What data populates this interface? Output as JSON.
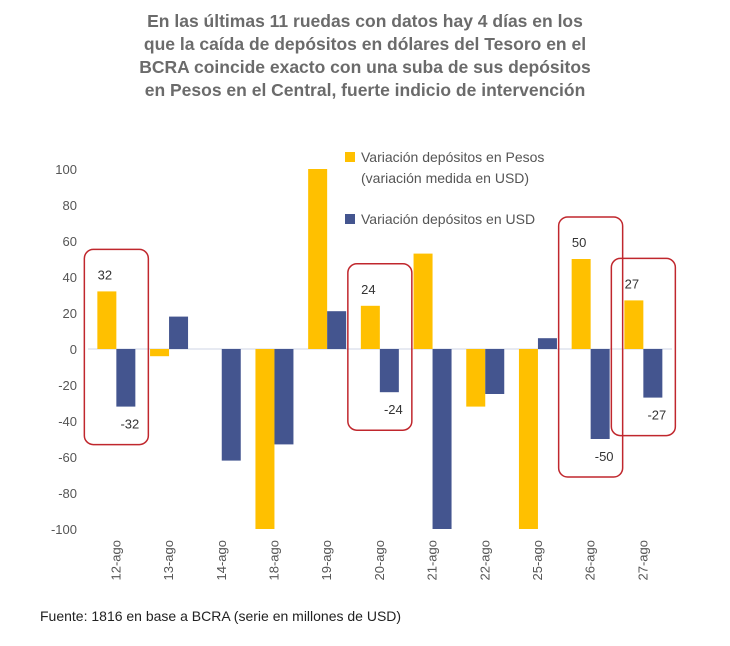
{
  "chart_data": {
    "type": "bar",
    "title": [
      "En las últimas 11 ruedas con datos hay 4 días en los",
      "que la caída de depósitos en dólares del Tesoro en el",
      "BCRA coincide exacto con una suba de sus depósitos",
      "en Pesos en el Central, fuerte indicio de intervención"
    ],
    "categories": [
      "12-ago",
      "13-ago",
      "14-ago",
      "18-ago",
      "19-ago",
      "20-ago",
      "21-ago",
      "22-ago",
      "25-ago",
      "26-ago",
      "27-ago"
    ],
    "series": [
      {
        "name": "Variación depósitos en Pesos (variación medida en USD)",
        "legend_lines": [
          "Variación depósitos en Pesos",
          "(variación medida en USD)"
        ],
        "color": "#FFC000",
        "values": [
          32,
          -4,
          0,
          -100,
          100,
          24,
          53,
          -32,
          -100,
          50,
          27
        ]
      },
      {
        "name": "Variación depósitos en USD",
        "legend_lines": [
          "Variación depósitos en USD"
        ],
        "color": "#44558F",
        "values": [
          -32,
          18,
          -62,
          -53,
          21,
          -24,
          -100,
          -25,
          6,
          -50,
          -27
        ]
      }
    ],
    "ylim": [
      -100,
      100
    ],
    "yticks": [
      100,
      80,
      60,
      40,
      20,
      0,
      -20,
      -40,
      -60,
      -80,
      -100
    ],
    "legend": "top-right",
    "grid": false,
    "highlighted": [
      "12-ago",
      "20-ago",
      "26-ago",
      "27-ago"
    ],
    "highlight_color": "#C0272D",
    "data_labels": {
      "12-ago": [
        "32",
        "-32"
      ],
      "20-ago": [
        "24",
        "-24"
      ],
      "26-ago": [
        "50",
        "-50"
      ],
      "27-ago": [
        "27",
        "-27"
      ]
    }
  },
  "source": "Fuente: 1816 en base a BCRA (serie en millones de USD)"
}
